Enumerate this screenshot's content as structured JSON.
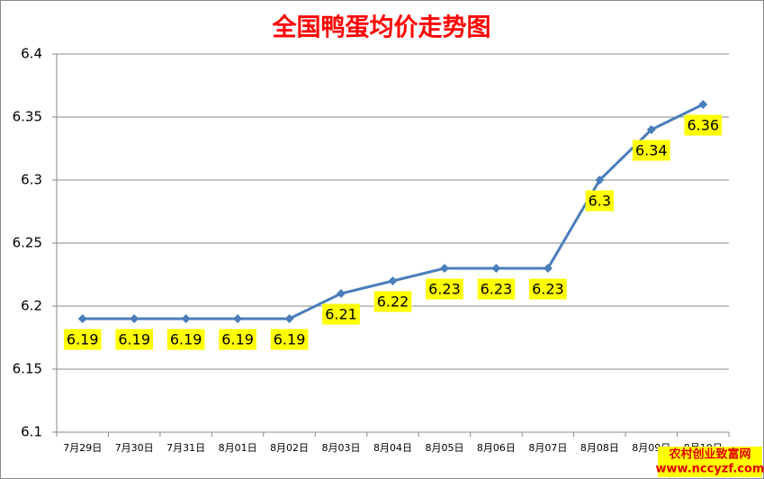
{
  "chart_data": {
    "type": "line",
    "title": "全国鸭蛋均价走势图",
    "categories": [
      "7月29日",
      "7月30日",
      "7月31日",
      "8月01日",
      "8月02日",
      "8月03日",
      "8月04日",
      "8月05日",
      "8月06日",
      "8月07日",
      "8月08日",
      "8月09日",
      "8月10日"
    ],
    "values": [
      6.19,
      6.19,
      6.19,
      6.19,
      6.19,
      6.21,
      6.22,
      6.23,
      6.23,
      6.23,
      6.3,
      6.34,
      6.36
    ],
    "color": "#4a7ebb",
    "label_background": "#ffff00",
    "ylim": [
      6.1,
      6.4
    ],
    "yticks": [
      6.1,
      6.15,
      6.2,
      6.25,
      6.3,
      6.35,
      6.4
    ],
    "grid": true,
    "watermark": [
      "农村创业致富网",
      "www.nccyzf.com"
    ]
  }
}
